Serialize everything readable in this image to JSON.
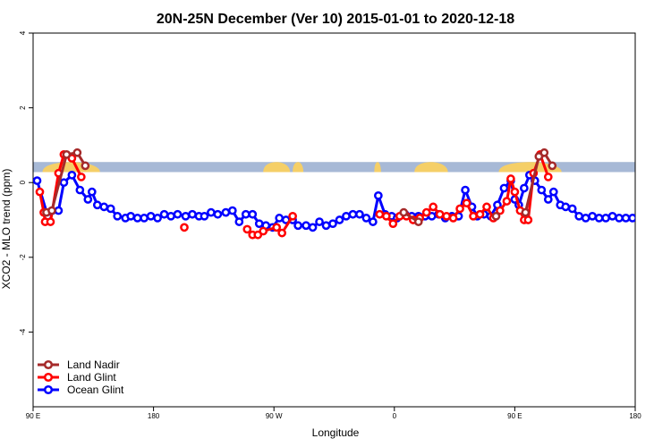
{
  "chart_data": {
    "type": "line",
    "title": "20N-25N December (Ver 10)   2015-01-01 to 2020-12-18",
    "xlabel": "Longitude",
    "ylabel": "XCO2 - MLO trend (ppm)",
    "xlim": [
      0,
      450
    ],
    "ylim": [
      -6,
      4
    ],
    "x_ticks": [
      {
        "value": 0,
        "label": "90 E"
      },
      {
        "value": 90,
        "label": "180"
      },
      {
        "value": 180,
        "label": "90 W"
      },
      {
        "value": 270,
        "label": "0"
      },
      {
        "value": 360,
        "label": "90 E"
      },
      {
        "value": 450,
        "label": "180"
      }
    ],
    "y_ticks": [
      {
        "value": 4,
        "label": "4"
      },
      {
        "value": 2,
        "label": "2"
      },
      {
        "value": 0,
        "label": "0"
      },
      {
        "value": -2,
        "label": "-2"
      },
      {
        "value": -4,
        "label": "-4"
      }
    ],
    "legend_position": "bottom-left",
    "map_band": {
      "y_top": 0.55,
      "y_bottom": 0.28,
      "ocean_color": "#a7b9d6",
      "land_color": "#f5cf67"
    },
    "series": [
      {
        "name": "Ocean Glint",
        "color": "#0000ff",
        "x": [
          3,
          11,
          19,
          23,
          29,
          35,
          41,
          44,
          48,
          53,
          58,
          63,
          69,
          73,
          78,
          83,
          88,
          93,
          98,
          103,
          108,
          114,
          119,
          124,
          128,
          133,
          138,
          144,
          149,
          154,
          159,
          164,
          169,
          174,
          179,
          184,
          189,
          194,
          198,
          204,
          209,
          214,
          219,
          224,
          229,
          234,
          239,
          244,
          249,
          254,
          258,
          263,
          268,
          272,
          278,
          283,
          288,
          293,
          298,
          303,
          308,
          313,
          318,
          323,
          328,
          332,
          337,
          342,
          347,
          352,
          357,
          360,
          363,
          367,
          371,
          375,
          380,
          385,
          389,
          394,
          398,
          403,
          408,
          413,
          418,
          423,
          428,
          433,
          438,
          443,
          448
        ],
        "y": [
          0.05,
          -0.9,
          -0.75,
          0.0,
          0.2,
          -0.2,
          -0.45,
          -0.25,
          -0.6,
          -0.65,
          -0.7,
          -0.9,
          -0.95,
          -0.9,
          -0.95,
          -0.95,
          -0.9,
          -0.95,
          -0.85,
          -0.9,
          -0.85,
          -0.9,
          -0.85,
          -0.9,
          -0.9,
          -0.8,
          -0.85,
          -0.8,
          -0.75,
          -1.05,
          -0.85,
          -0.85,
          -1.1,
          -1.15,
          -1.2,
          -0.95,
          -1.0,
          -1.0,
          -1.15,
          -1.15,
          -1.2,
          -1.05,
          -1.15,
          -1.1,
          -1.0,
          -0.9,
          -0.85,
          -0.85,
          -0.95,
          -1.05,
          -0.35,
          -0.85,
          -0.9,
          -0.95,
          -0.85,
          -0.9,
          -0.9,
          -0.9,
          -0.9,
          -0.85,
          -0.95,
          -0.9,
          -0.9,
          -0.2,
          -0.65,
          -0.9,
          -0.85,
          -0.9,
          -0.6,
          -0.15,
          0.05,
          -0.45,
          -0.6,
          -0.15,
          0.2,
          0.05,
          -0.2,
          -0.45,
          -0.25,
          -0.6,
          -0.65,
          -0.7,
          -0.9,
          -0.95,
          -0.9,
          -0.95,
          -0.95,
          -0.9,
          -0.95,
          -0.95,
          -0.95
        ]
      },
      {
        "name": "Land Glint",
        "color": "#ff0000",
        "x": [
          5,
          8,
          9,
          13,
          19,
          23,
          29,
          36,
          113,
          160,
          164,
          168,
          172,
          182,
          186,
          194,
          259,
          264,
          269,
          274,
          279,
          284,
          289,
          294,
          299,
          304,
          309,
          314,
          319,
          324,
          329,
          334,
          339,
          344,
          349,
          354,
          357,
          360,
          364,
          367,
          370,
          374,
          379,
          385
        ],
        "y": [
          -0.25,
          -0.8,
          -1.05,
          -1.05,
          0.25,
          0.75,
          0.65,
          0.15,
          -1.2,
          -1.25,
          -1.4,
          -1.4,
          -1.3,
          -1.2,
          -1.35,
          -0.9,
          -0.85,
          -0.9,
          -1.1,
          -0.9,
          -0.9,
          -1.0,
          -0.95,
          -0.8,
          -0.65,
          -0.85,
          -0.9,
          -0.95,
          -0.7,
          -0.55,
          -0.9,
          -0.85,
          -0.65,
          -0.95,
          -0.75,
          -0.5,
          0.1,
          -0.25,
          -0.75,
          -1.0,
          -1.0,
          0.25,
          0.75,
          0.15
        ]
      },
      {
        "name": "Land Nadir",
        "color": "#a52a2a",
        "x": [
          10,
          14,
          25,
          33,
          39,
          277,
          288,
          346,
          368,
          378,
          382,
          388
        ],
        "y": [
          -0.8,
          -0.75,
          0.75,
          0.8,
          0.45,
          -0.8,
          -1.05,
          -0.9,
          -0.8,
          0.7,
          0.8,
          0.45
        ]
      }
    ]
  }
}
